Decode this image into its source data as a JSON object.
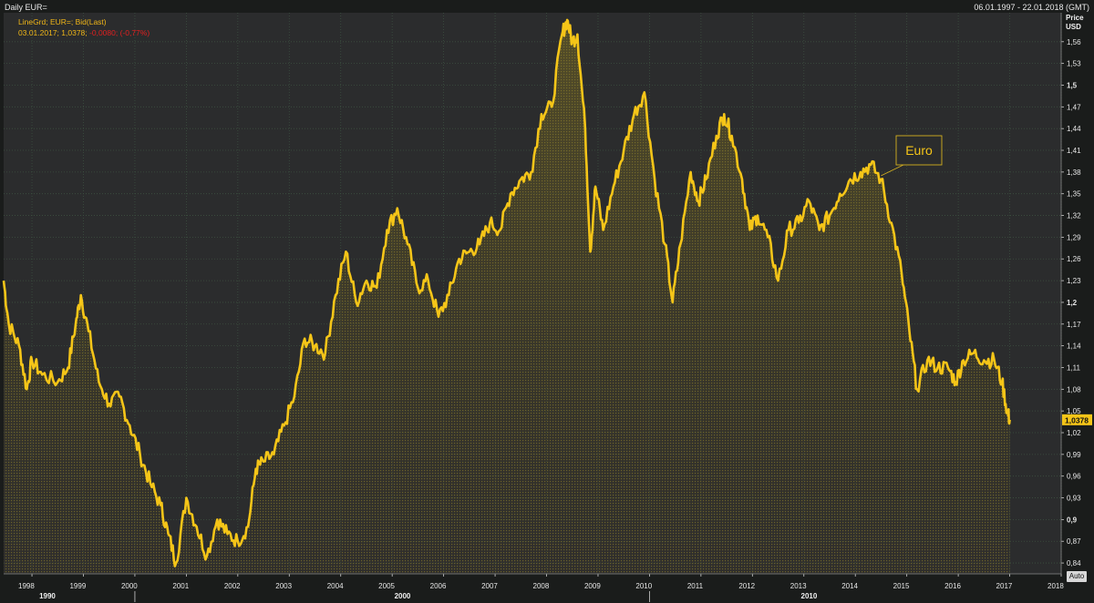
{
  "header": {
    "title": "Daily EUR=",
    "range": "06.01.1997 - 22.01.2018 (GMT)"
  },
  "legend": {
    "line1": "LineGrd; EUR=; Bid(Last)",
    "date": "03.01.2017;",
    "value": "1,0378;",
    "change": "-0,0080; (-0,77%)"
  },
  "y_axis": {
    "title_line1": "Price",
    "title_line2": "USD",
    "last_value_label": "1,0378"
  },
  "auto_button": "Auto",
  "annotation": "Euro",
  "colors": {
    "background": "#1a1c1b",
    "plot_background": "#2b2c2d",
    "line": "#f5c518",
    "grid": "#3c5040",
    "negative": "#e02020"
  },
  "chart_data": {
    "type": "area",
    "title": "Daily EUR=",
    "ylabel": "Price USD",
    "ylim": [
      0.825,
      1.6
    ],
    "xlim": [
      1997.45,
      2018.0
    ],
    "grid": true,
    "x_ticks": [
      "1998",
      "1999",
      "2000",
      "2001",
      "2002",
      "2003",
      "2004",
      "2005",
      "2006",
      "2007",
      "2008",
      "2009",
      "2010",
      "2011",
      "2012",
      "2013",
      "2014",
      "2015",
      "2016",
      "2017",
      "2018"
    ],
    "decade_labels": [
      "1990",
      "2000",
      "2010"
    ],
    "y_ticks": [
      "1,56",
      "1,53",
      "1,5",
      "1,47",
      "1,44",
      "1,41",
      "1,38",
      "1,35",
      "1,32",
      "1,29",
      "1,26",
      "1,23",
      "1,2",
      "1,17",
      "1,14",
      "1,11",
      "1,08",
      "1,05",
      "1,02",
      "0,99",
      "0,96",
      "0,93",
      "0,9",
      "0,87",
      "0,84"
    ],
    "y_ticks_bold": [
      "1,5",
      "1,2",
      "0,9"
    ],
    "series": [
      {
        "points": [
          [
            1997.45,
            1.23
          ],
          [
            1997.55,
            1.17
          ],
          [
            1997.75,
            1.14
          ],
          [
            1997.9,
            1.08
          ],
          [
            1998.0,
            1.12
          ],
          [
            1998.2,
            1.1
          ],
          [
            1998.5,
            1.09
          ],
          [
            1998.7,
            1.11
          ],
          [
            1998.85,
            1.17
          ],
          [
            1998.95,
            1.21
          ],
          [
            1999.1,
            1.16
          ],
          [
            1999.3,
            1.09
          ],
          [
            1999.5,
            1.06
          ],
          [
            1999.7,
            1.07
          ],
          [
            1999.9,
            1.03
          ],
          [
            2000.1,
            0.99
          ],
          [
            2000.3,
            0.95
          ],
          [
            2000.5,
            0.92
          ],
          [
            2000.65,
            0.88
          ],
          [
            2000.8,
            0.84
          ],
          [
            2001.0,
            0.93
          ],
          [
            2001.2,
            0.89
          ],
          [
            2001.4,
            0.85
          ],
          [
            2001.6,
            0.9
          ],
          [
            2001.8,
            0.88
          ],
          [
            2002.0,
            0.87
          ],
          [
            2002.2,
            0.89
          ],
          [
            2002.35,
            0.97
          ],
          [
            2002.5,
            0.98
          ],
          [
            2002.7,
            0.99
          ],
          [
            2002.9,
            1.03
          ],
          [
            2003.1,
            1.07
          ],
          [
            2003.3,
            1.15
          ],
          [
            2003.5,
            1.14
          ],
          [
            2003.7,
            1.13
          ],
          [
            2003.9,
            1.21
          ],
          [
            2004.1,
            1.27
          ],
          [
            2004.3,
            1.2
          ],
          [
            2004.5,
            1.23
          ],
          [
            2004.7,
            1.22
          ],
          [
            2004.9,
            1.3
          ],
          [
            2005.1,
            1.33
          ],
          [
            2005.3,
            1.28
          ],
          [
            2005.5,
            1.22
          ],
          [
            2005.7,
            1.23
          ],
          [
            2005.9,
            1.18
          ],
          [
            2006.1,
            1.21
          ],
          [
            2006.3,
            1.26
          ],
          [
            2006.5,
            1.27
          ],
          [
            2006.7,
            1.28
          ],
          [
            2006.9,
            1.31
          ],
          [
            2007.1,
            1.3
          ],
          [
            2007.3,
            1.35
          ],
          [
            2007.5,
            1.37
          ],
          [
            2007.7,
            1.38
          ],
          [
            2007.9,
            1.46
          ],
          [
            2008.1,
            1.47
          ],
          [
            2008.3,
            1.57
          ],
          [
            2008.4,
            1.59
          ],
          [
            2008.5,
            1.56
          ],
          [
            2008.6,
            1.57
          ],
          [
            2008.75,
            1.44
          ],
          [
            2008.85,
            1.27
          ],
          [
            2008.95,
            1.36
          ],
          [
            2009.1,
            1.3
          ],
          [
            2009.3,
            1.36
          ],
          [
            2009.5,
            1.41
          ],
          [
            2009.7,
            1.46
          ],
          [
            2009.9,
            1.49
          ],
          [
            2010.1,
            1.37
          ],
          [
            2010.3,
            1.28
          ],
          [
            2010.45,
            1.2
          ],
          [
            2010.6,
            1.28
          ],
          [
            2010.8,
            1.38
          ],
          [
            2010.95,
            1.34
          ],
          [
            2011.1,
            1.37
          ],
          [
            2011.3,
            1.43
          ],
          [
            2011.45,
            1.46
          ],
          [
            2011.6,
            1.43
          ],
          [
            2011.8,
            1.37
          ],
          [
            2011.95,
            1.3
          ],
          [
            2012.1,
            1.32
          ],
          [
            2012.3,
            1.29
          ],
          [
            2012.5,
            1.23
          ],
          [
            2012.7,
            1.3
          ],
          [
            2012.9,
            1.31
          ],
          [
            2013.1,
            1.34
          ],
          [
            2013.3,
            1.3
          ],
          [
            2013.5,
            1.32
          ],
          [
            2013.7,
            1.35
          ],
          [
            2013.9,
            1.37
          ],
          [
            2014.1,
            1.38
          ],
          [
            2014.3,
            1.39
          ],
          [
            2014.5,
            1.37
          ],
          [
            2014.7,
            1.31
          ],
          [
            2014.9,
            1.24
          ],
          [
            2015.05,
            1.16
          ],
          [
            2015.2,
            1.08
          ],
          [
            2015.4,
            1.12
          ],
          [
            2015.6,
            1.11
          ],
          [
            2015.8,
            1.11
          ],
          [
            2015.95,
            1.09
          ],
          [
            2016.1,
            1.12
          ],
          [
            2016.3,
            1.13
          ],
          [
            2016.5,
            1.12
          ],
          [
            2016.7,
            1.12
          ],
          [
            2016.85,
            1.09
          ],
          [
            2016.95,
            1.05
          ],
          [
            2017.0,
            1.0378
          ]
        ]
      }
    ]
  }
}
